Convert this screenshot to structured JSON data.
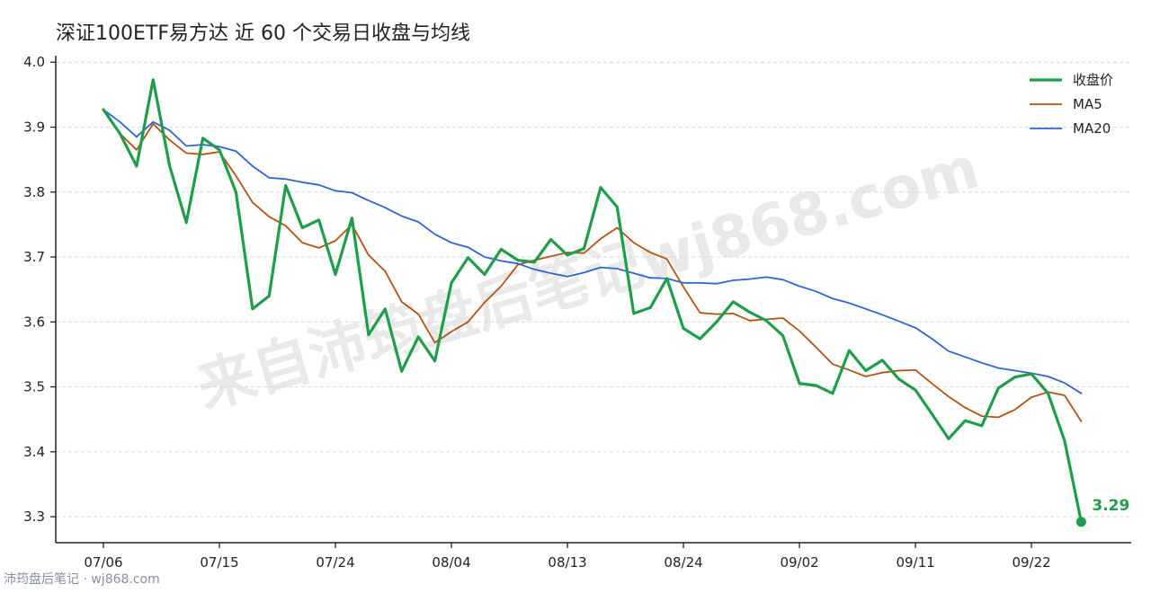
{
  "title": "深证100ETF易方达 近 60 个交易日收盘与均线",
  "watermark": "来自沛筠盘后笔记wj868.com",
  "footer": "沛筠盘后笔记 · wj868.com",
  "colors": {
    "close": "#1e9e4a",
    "ma5": "#b5520f",
    "ma20": "#2f63d6",
    "grid": "#d9d9d9",
    "axis": "#222222"
  },
  "chart_data": {
    "type": "line",
    "title": "深证100ETF易方达 近 60 个交易日收盘与均线",
    "ylim": [
      3.26,
      4.01
    ],
    "yticks": [
      "3.3",
      "3.4",
      "3.5",
      "3.6",
      "3.7",
      "3.8",
      "3.9",
      "4.0"
    ],
    "xticks": [
      {
        "index": 0,
        "label": "07/06"
      },
      {
        "index": 7,
        "label": "07/15"
      },
      {
        "index": 14,
        "label": "07/24"
      },
      {
        "index": 21,
        "label": "08/04"
      },
      {
        "index": 28,
        "label": "08/13"
      },
      {
        "index": 35,
        "label": "08/24"
      },
      {
        "index": 42,
        "label": "09/02"
      },
      {
        "index": 49,
        "label": "09/11"
      },
      {
        "index": 56,
        "label": "09/22"
      }
    ],
    "grid": "horizontal dashed",
    "legend_position": "top-right",
    "last_label": "3.29",
    "series": [
      {
        "name": "收盘价",
        "key": "close",
        "values": [
          3.927,
          3.89,
          3.84,
          3.973,
          3.84,
          3.753,
          3.883,
          3.865,
          3.8,
          3.62,
          3.64,
          3.81,
          3.745,
          3.757,
          3.673,
          3.76,
          3.58,
          3.62,
          3.524,
          3.577,
          3.54,
          3.66,
          3.699,
          3.673,
          3.712,
          3.695,
          3.692,
          3.727,
          3.703,
          3.713,
          3.807,
          3.777,
          3.613,
          3.622,
          3.667,
          3.59,
          3.574,
          3.6,
          3.631,
          3.615,
          3.602,
          3.579,
          3.505,
          3.502,
          3.49,
          3.556,
          3.525,
          3.541,
          3.512,
          3.495,
          3.458,
          3.42,
          3.448,
          3.44,
          3.498,
          3.515,
          3.52,
          3.49,
          3.417,
          3.292
        ]
      },
      {
        "name": "MA5",
        "key": "ma5",
        "values": [
          3.927,
          3.89,
          3.865,
          3.905,
          3.88,
          3.86,
          3.858,
          3.862,
          3.825,
          3.784,
          3.762,
          3.748,
          3.722,
          3.714,
          3.725,
          3.75,
          3.703,
          3.678,
          3.631,
          3.612,
          3.568,
          3.585,
          3.6,
          3.63,
          3.655,
          3.688,
          3.695,
          3.701,
          3.707,
          3.706,
          3.728,
          3.745,
          3.722,
          3.707,
          3.697,
          3.654,
          3.614,
          3.612,
          3.613,
          3.602,
          3.604,
          3.606,
          3.586,
          3.561,
          3.535,
          3.526,
          3.516,
          3.522,
          3.525,
          3.526,
          3.505,
          3.485,
          3.468,
          3.455,
          3.453,
          3.465,
          3.484,
          3.492,
          3.487,
          3.447
        ]
      },
      {
        "name": "MA20",
        "key": "ma20",
        "values": [
          3.927,
          3.908,
          3.885,
          3.908,
          3.895,
          3.871,
          3.873,
          3.87,
          3.863,
          3.84,
          3.822,
          3.82,
          3.815,
          3.811,
          3.802,
          3.799,
          3.787,
          3.776,
          3.763,
          3.754,
          3.735,
          3.722,
          3.715,
          3.7,
          3.694,
          3.69,
          3.681,
          3.675,
          3.67,
          3.676,
          3.684,
          3.682,
          3.675,
          3.668,
          3.667,
          3.66,
          3.66,
          3.659,
          3.664,
          3.666,
          3.669,
          3.665,
          3.655,
          3.647,
          3.636,
          3.629,
          3.62,
          3.611,
          3.601,
          3.591,
          3.574,
          3.555,
          3.546,
          3.537,
          3.529,
          3.525,
          3.521,
          3.516,
          3.506,
          3.49
        ]
      }
    ]
  }
}
